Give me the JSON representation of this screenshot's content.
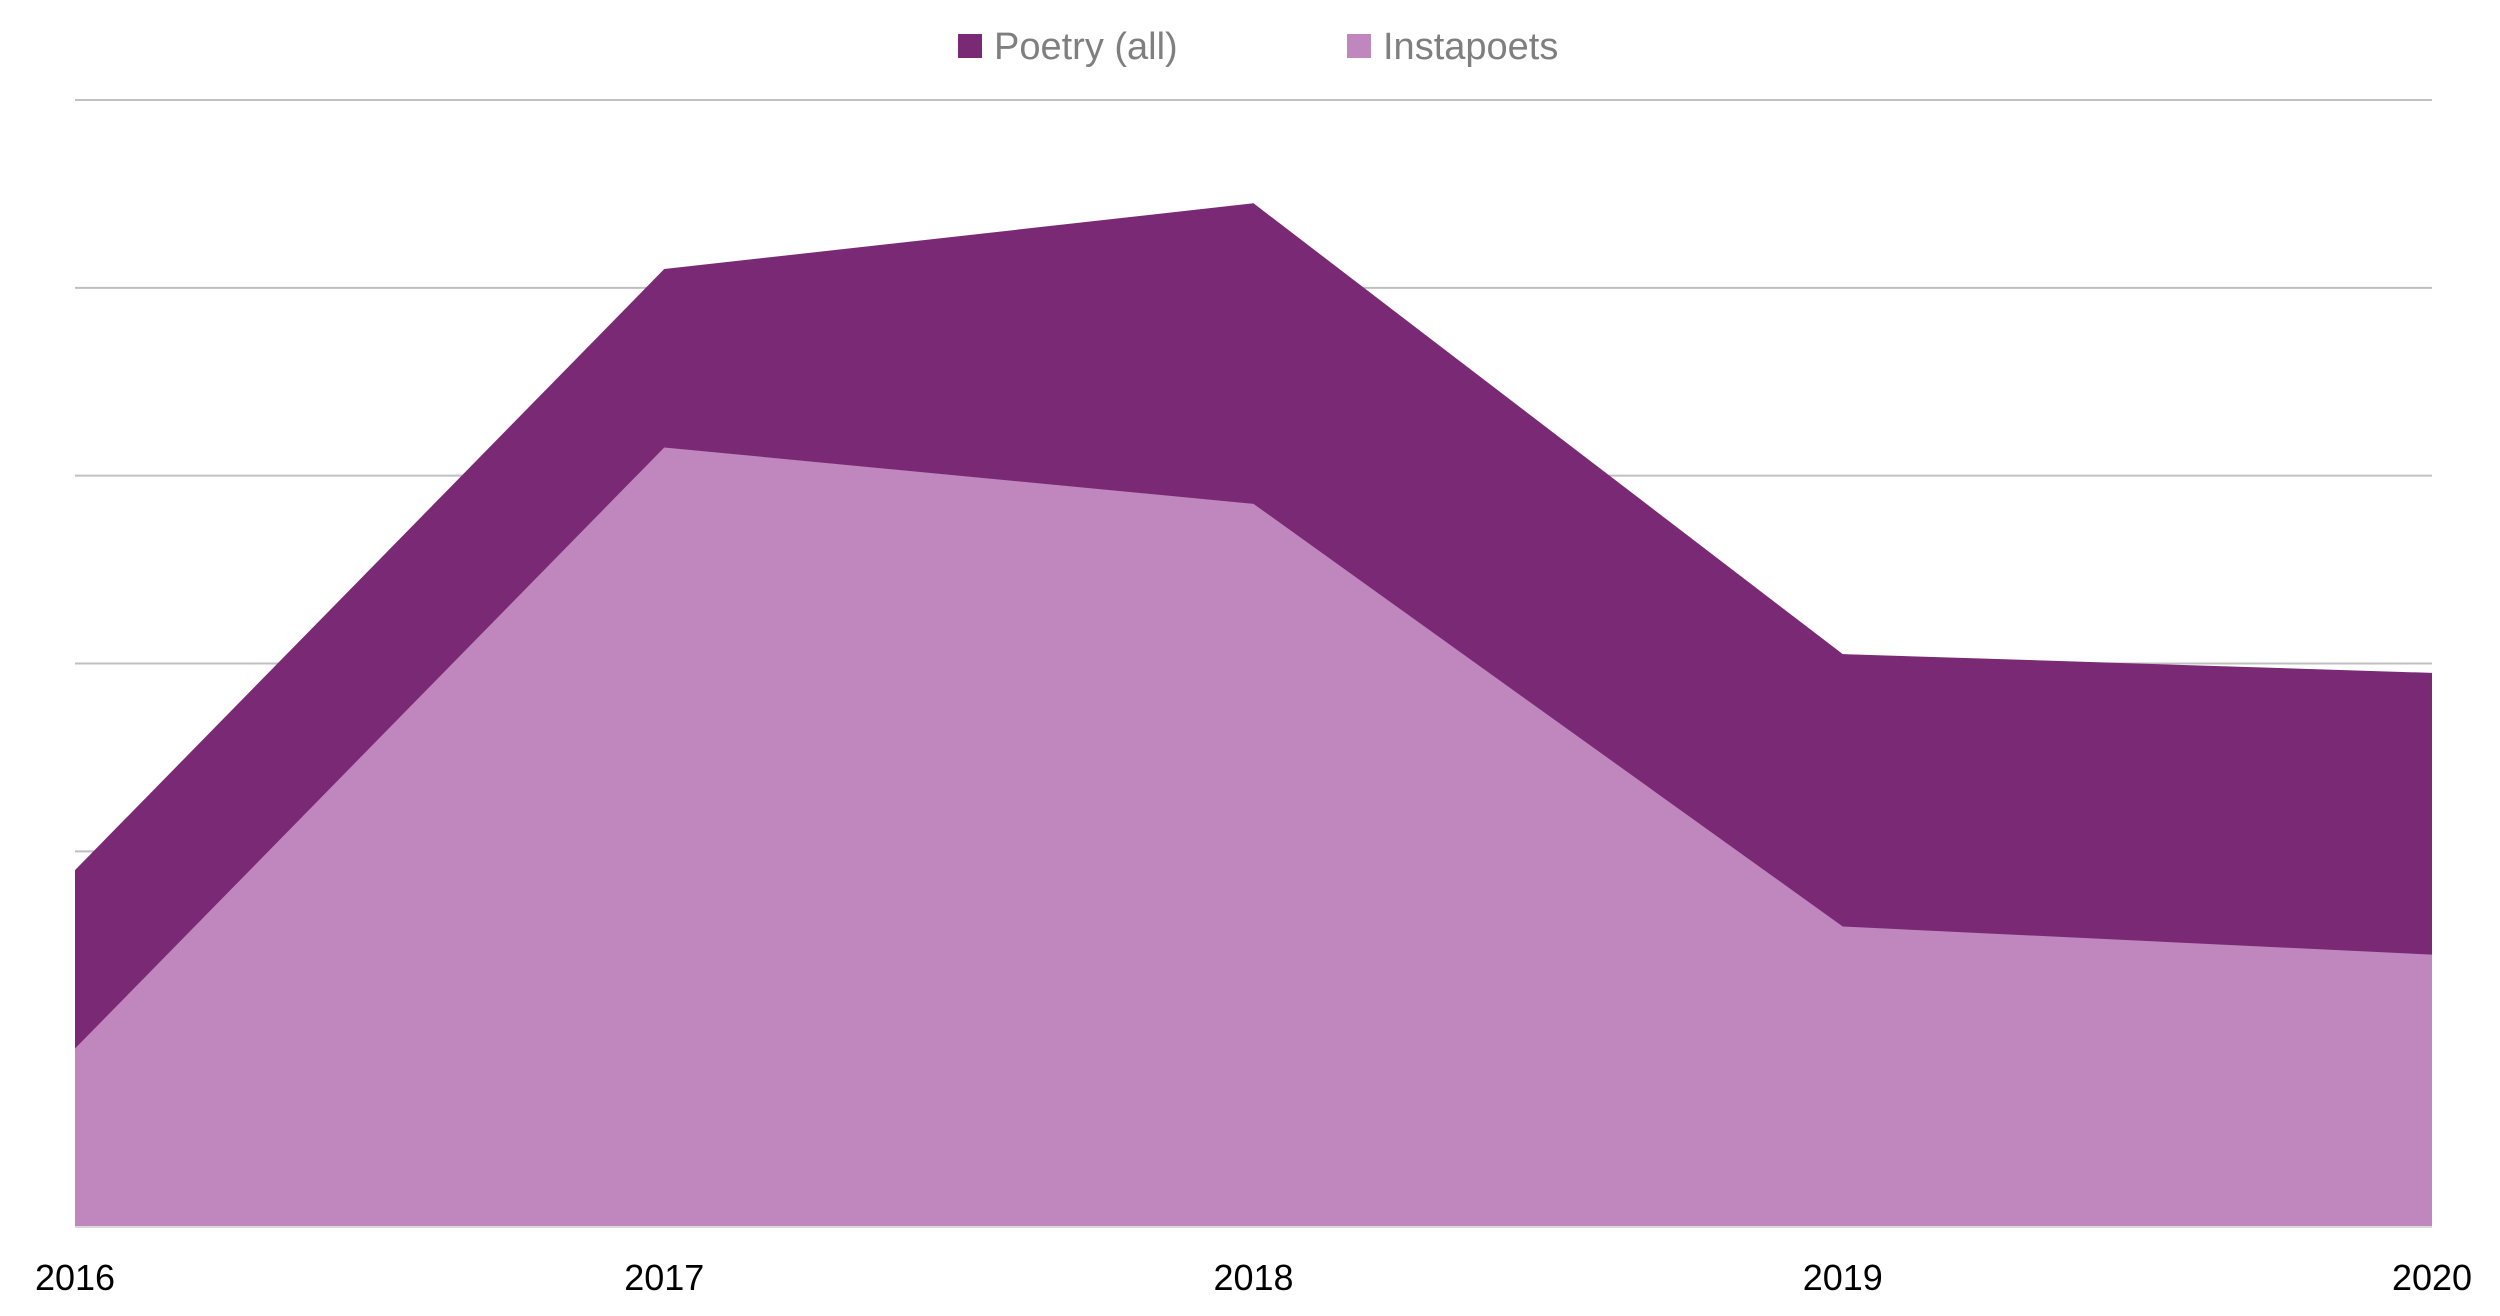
{
  "chart_data": {
    "type": "area",
    "stacked": false,
    "categories": [
      "2016",
      "2017",
      "2018",
      "2019",
      "2020"
    ],
    "series": [
      {
        "name": "Poetry (all)",
        "values": [
          1.9,
          5.1,
          5.45,
          3.05,
          2.95
        ],
        "color": "#7a2a75"
      },
      {
        "name": "Instapoets",
        "values": [
          0.95,
          4.15,
          3.85,
          1.6,
          1.45
        ],
        "color": "#bf87be"
      }
    ],
    "ylim": [
      0,
      6
    ],
    "grid": true,
    "legend": "top-center",
    "gridline_color": "#bfbfbf",
    "axis_color": "#d9d9d9"
  }
}
